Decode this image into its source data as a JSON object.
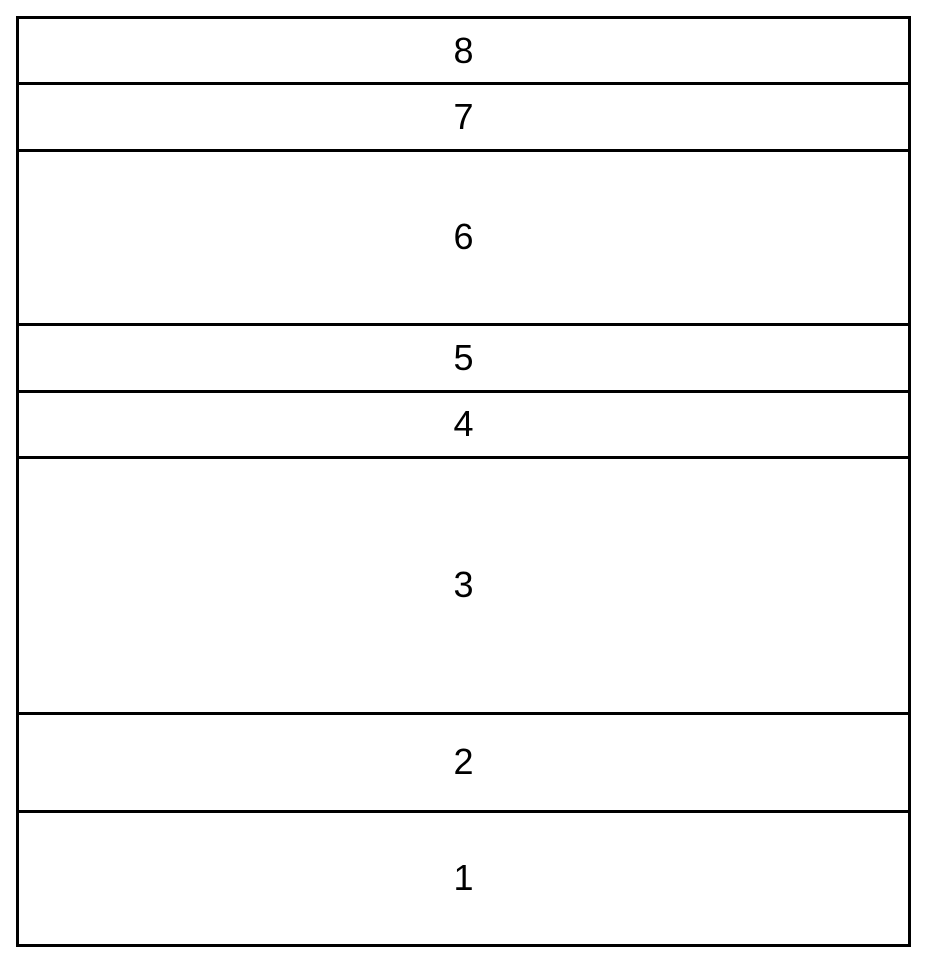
{
  "diagram": {
    "type": "stacked-layers",
    "background_color": "#ffffff",
    "border_color": "#000000",
    "border_width": 3,
    "label_fontsize": 36,
    "label_color": "#000000",
    "label_weight": 400,
    "layers": [
      {
        "label": "8",
        "height_ratio": 0.07
      },
      {
        "label": "7",
        "height_ratio": 0.07
      },
      {
        "label": "6",
        "height_ratio": 0.19
      },
      {
        "label": "5",
        "height_ratio": 0.07
      },
      {
        "label": "4",
        "height_ratio": 0.07
      },
      {
        "label": "3",
        "height_ratio": 0.28
      },
      {
        "label": "2",
        "height_ratio": 0.105
      },
      {
        "label": "1",
        "height_ratio": 0.145
      }
    ]
  }
}
